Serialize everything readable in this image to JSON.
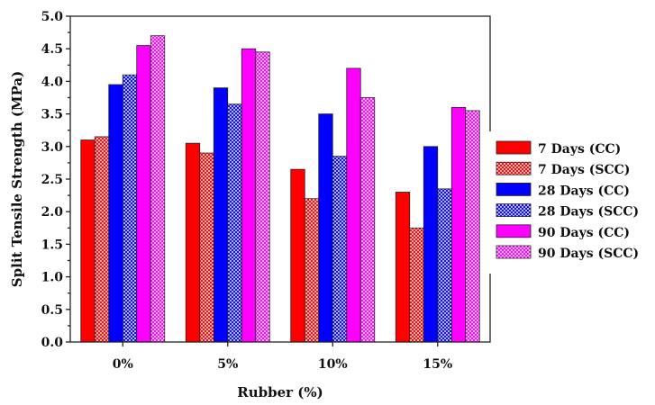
{
  "chart_data": {
    "type": "bar",
    "title": "",
    "xlabel": "Rubber (%)",
    "ylabel": "Split Tensile Strength (MPa)",
    "ylim": [
      0,
      5.0
    ],
    "yticks": [
      "0.0",
      "0.5",
      "1.0",
      "1.5",
      "2.0",
      "2.5",
      "3.0",
      "3.5",
      "4.0",
      "4.5",
      "5.0"
    ],
    "categories": [
      "0%",
      "5%",
      "10%",
      "15%"
    ],
    "legend_position": "right",
    "series": [
      {
        "name": "7 Days (CC)",
        "values": [
          3.1,
          3.05,
          2.65,
          2.3
        ],
        "color": "#ff0000",
        "pattern": "solid"
      },
      {
        "name": "7 Days (SCC)",
        "values": [
          3.15,
          2.9,
          2.2,
          1.75
        ],
        "color": "#ff0000",
        "pattern": "crosshatch"
      },
      {
        "name": "28 Days (CC)",
        "values": [
          3.95,
          3.9,
          3.5,
          3.0
        ],
        "color": "#0000ff",
        "pattern": "solid"
      },
      {
        "name": "28 Days (SCC)",
        "values": [
          4.1,
          3.65,
          2.85,
          2.35
        ],
        "color": "#0000ff",
        "pattern": "crosshatch"
      },
      {
        "name": "90 Days (CC)",
        "values": [
          4.55,
          4.5,
          4.2,
          3.6
        ],
        "color": "#ff00ff",
        "pattern": "solid"
      },
      {
        "name": "90 Days (SCC)",
        "values": [
          4.7,
          4.45,
          3.75,
          3.55
        ],
        "color": "#ff00ff",
        "pattern": "crosshatch"
      }
    ]
  }
}
